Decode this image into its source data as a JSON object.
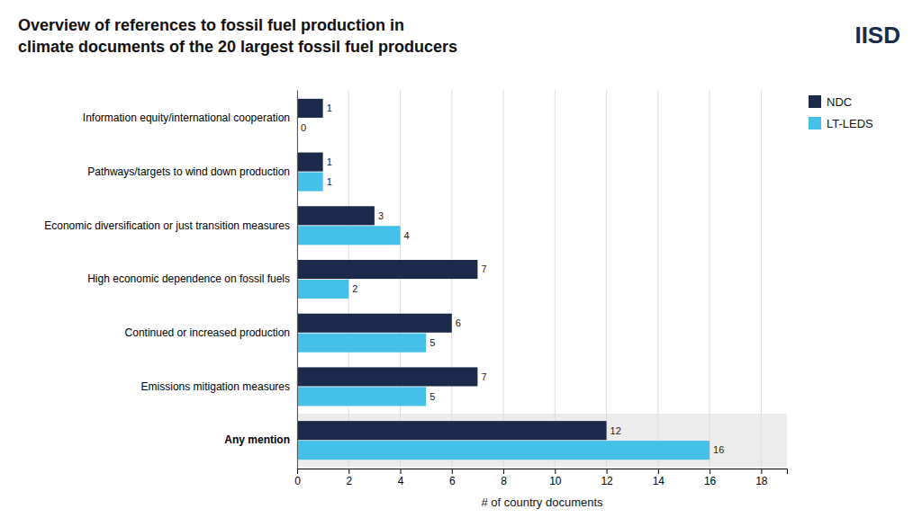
{
  "chart_data": {
    "type": "bar",
    "orientation": "horizontal",
    "title": "Overview of references to fossil fuel production in\nclimate documents of the 20 largest fossil fuel producers",
    "categories": [
      "Information equity/international cooperation",
      "Pathways/targets to wind down production",
      "Economic diversification or just transition measures",
      "High economic dependence on fossil fuels",
      "Continued or increased production",
      "Emissions mitigation measures",
      "Any mention"
    ],
    "series": [
      {
        "name": "NDC",
        "color": "#1b2a4a",
        "values": [
          1,
          1,
          3,
          7,
          6,
          7,
          12
        ]
      },
      {
        "name": "LT-LEDS",
        "color": "#45c0e8",
        "values": [
          0,
          1,
          4,
          2,
          5,
          5,
          16
        ]
      }
    ],
    "xlabel": "# of country documents",
    "xlim": [
      0,
      19
    ],
    "xticks": [
      0,
      2,
      4,
      6,
      8,
      10,
      12,
      14,
      16,
      18
    ],
    "grid": true,
    "legend": "upper right",
    "data_labels": true,
    "annotations": [
      "IISD"
    ]
  }
}
